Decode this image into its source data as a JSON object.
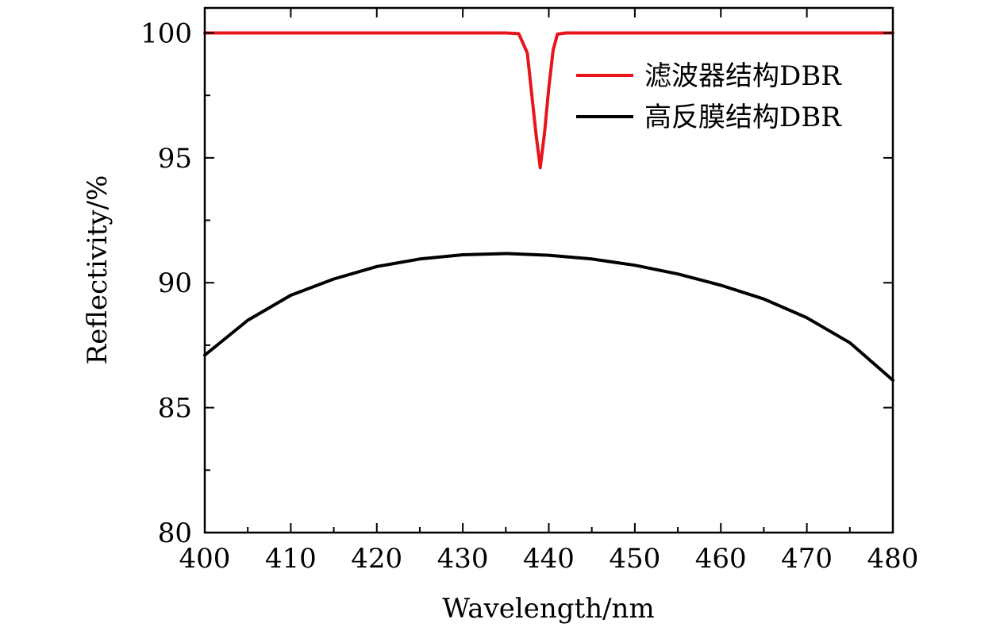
{
  "chart_data": {
    "type": "line",
    "xlabel": "Wavelength/nm",
    "ylabel": "Reflectivity/%",
    "xlim": [
      400,
      480
    ],
    "ylim": [
      80,
      101
    ],
    "x_ticks": [
      400,
      410,
      420,
      430,
      440,
      450,
      460,
      470,
      480
    ],
    "x_tick_labels": [
      "400",
      "410",
      "420",
      "430",
      "440",
      "450",
      "460",
      "470",
      "480"
    ],
    "y_ticks": [
      80,
      85,
      90,
      95,
      100
    ],
    "y_tick_labels": [
      "80",
      "85",
      "90",
      "95",
      "100"
    ],
    "grid": false,
    "legend_position": "top-right",
    "series": [
      {
        "name": "滤波器结构DBR",
        "color": "#e8141c",
        "x": [
          400,
          410,
          420,
          430,
          435,
          436.5,
          437.5,
          438.0,
          438.5,
          439.0,
          439.5,
          440.0,
          440.5,
          441.0,
          442,
          450,
          460,
          470,
          480
        ],
        "y": [
          100,
          100,
          100,
          100,
          100,
          99.97,
          99.2,
          97.6,
          96.0,
          94.6,
          96.0,
          97.8,
          99.3,
          99.95,
          100,
          100,
          100,
          100,
          100
        ]
      },
      {
        "name": "高反膜结构DBR",
        "color": "#000000",
        "x": [
          400,
          405,
          410,
          415,
          420,
          425,
          430,
          435,
          440,
          445,
          450,
          455,
          460,
          465,
          470,
          475,
          480
        ],
        "y": [
          87.1,
          88.5,
          89.5,
          90.15,
          90.65,
          90.95,
          91.12,
          91.17,
          91.1,
          90.95,
          90.7,
          90.35,
          89.9,
          89.35,
          88.6,
          87.6,
          86.1
        ]
      }
    ]
  }
}
